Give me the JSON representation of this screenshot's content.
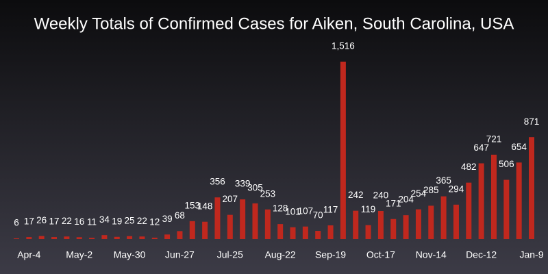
{
  "chart_data": {
    "type": "bar",
    "title": "Weekly Totals of Confirmed Cases for Aiken, South Carolina, USA",
    "color": "#c0281e",
    "categories": [
      null,
      "Apr-4",
      null,
      null,
      null,
      "May-2",
      null,
      null,
      null,
      "May-30",
      null,
      null,
      null,
      "Jun-27",
      null,
      null,
      null,
      "Jul-25",
      null,
      null,
      null,
      "Aug-22",
      null,
      null,
      null,
      "Sep-19",
      null,
      null,
      null,
      "Oct-17",
      null,
      null,
      null,
      "Nov-14",
      null,
      null,
      null,
      "Dec-12",
      null,
      null,
      null,
      "Jan-9"
    ],
    "values": [
      6,
      17,
      26,
      17,
      22,
      16,
      11,
      34,
      19,
      25,
      22,
      12,
      39,
      68,
      153,
      148,
      356,
      207,
      339,
      305,
      253,
      128,
      101,
      107,
      70,
      117,
      1516,
      242,
      119,
      240,
      171,
      204,
      254,
      285,
      365,
      294,
      482,
      647,
      721,
      506,
      654,
      871
    ],
    "value_labels": [
      "6",
      "17",
      "26",
      "17",
      "22",
      "16",
      "11",
      "34",
      "19",
      "25",
      "22",
      "12",
      "39",
      "68",
      "153",
      "148",
      "356",
      "207",
      "339",
      "305",
      "253",
      "128",
      "101",
      "107",
      "70",
      "117",
      "1,516",
      "242",
      "119",
      "240",
      "171",
      "204",
      "254",
      "285",
      "365",
      "294",
      "482",
      "647",
      "721",
      "506",
      "654",
      "871"
    ]
  }
}
